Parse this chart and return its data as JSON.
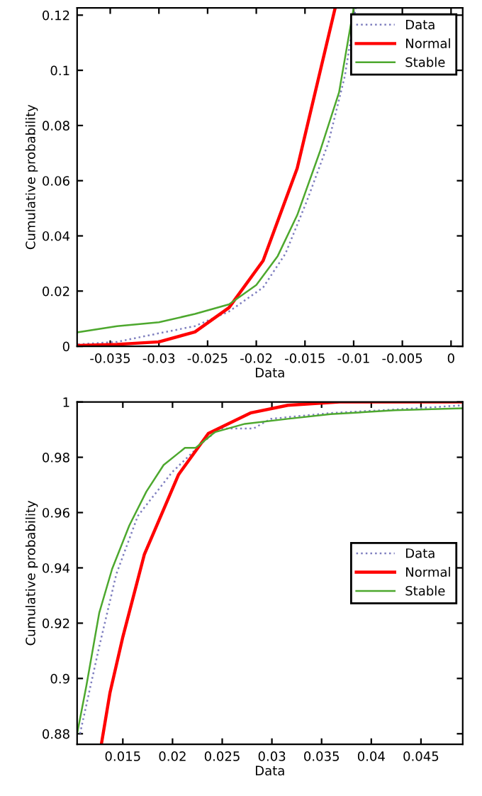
{
  "chart_data": [
    {
      "type": "line",
      "xlabel": "Data",
      "ylabel": "Cumulative probability",
      "xlim": [
        -0.0384,
        0.0012
      ],
      "ylim": [
        0,
        0.1226
      ],
      "xticks": [
        -0.035,
        -0.03,
        -0.025,
        -0.02,
        -0.015,
        -0.01,
        -0.005,
        0
      ],
      "yticks": [
        0,
        0.02,
        0.04,
        0.06,
        0.08,
        0.1,
        0.12
      ],
      "legend": "top right",
      "grid": false,
      "series": [
        {
          "name": "Data",
          "color": "#7f7fbf",
          "line_style": "dotted",
          "x": [
            -0.0383,
            -0.0343,
            -0.03,
            -0.0263,
            -0.0228,
            -0.0193,
            -0.017,
            -0.0148,
            -0.0126,
            -0.0109,
            -0.0098
          ],
          "values": [
            0.0007,
            0.0016,
            0.0047,
            0.0073,
            0.0126,
            0.0213,
            0.0336,
            0.0527,
            0.0737,
            0.098,
            0.1226
          ]
        },
        {
          "name": "Normal",
          "color": "#ff0000",
          "line_style": "solid",
          "x": [
            -0.0383,
            -0.0343,
            -0.03,
            -0.0263,
            -0.0228,
            -0.0193,
            -0.0158,
            -0.0119
          ],
          "values": [
            0.0003,
            0.0007,
            0.0016,
            0.0052,
            0.014,
            0.031,
            0.0645,
            0.1226
          ]
        },
        {
          "name": "Stable",
          "color": "#4da82e",
          "line_style": "solid",
          "x": [
            -0.0383,
            -0.0343,
            -0.03,
            -0.0263,
            -0.0228,
            -0.02,
            -0.0178,
            -0.0158,
            -0.0135,
            -0.0115,
            -0.01
          ],
          "values": [
            0.0051,
            0.0073,
            0.0087,
            0.0117,
            0.0152,
            0.0222,
            0.0327,
            0.0475,
            0.0702,
            0.092,
            0.1226
          ]
        }
      ]
    },
    {
      "type": "line",
      "xlabel": "Data",
      "ylabel": "Cumulative probability",
      "xlim": [
        0.0104,
        0.0492
      ],
      "ylim": [
        0.8762,
        1
      ],
      "xticks": [
        0.015,
        0.02,
        0.025,
        0.03,
        0.035,
        0.04,
        0.045
      ],
      "yticks": [
        0.88,
        0.9,
        0.92,
        0.94,
        0.96,
        0.98,
        1
      ],
      "legend": "right",
      "grid": false,
      "series": [
        {
          "name": "Data",
          "color": "#7f7fbf",
          "line_style": "dotted",
          "x": [
            0.01069,
            0.01263,
            0.01435,
            0.01651,
            0.01996,
            0.02297,
            0.0247,
            0.02815,
            0.02987,
            0.0359,
            0.04453,
            0.0492
          ],
          "values": [
            0.88,
            0.9116,
            0.9378,
            0.9588,
            0.9746,
            0.9851,
            0.9904,
            0.9904,
            0.9939,
            0.996,
            0.9977,
            0.9988
          ]
        },
        {
          "name": "Normal",
          "color": "#ff0000",
          "line_style": "solid",
          "x": [
            0.01284,
            0.01371,
            0.015,
            0.01716,
            0.0206,
            0.0236,
            0.0279,
            0.0316,
            0.0368,
            0.0492
          ],
          "values": [
            0.8762,
            0.8949,
            0.915,
            0.9448,
            0.9737,
            0.9886,
            0.9961,
            0.9988,
            1.0,
            1.0
          ]
        },
        {
          "name": "Stable",
          "color": "#4da82e",
          "line_style": "solid",
          "x": [
            0.0104,
            0.01134,
            0.01263,
            0.01392,
            0.01565,
            0.01737,
            0.0191,
            0.02125,
            0.02233,
            0.02427,
            0.02728,
            0.0316,
            0.0359,
            0.04237,
            0.0492
          ],
          "values": [
            0.88,
            0.8975,
            0.9238,
            0.9396,
            0.9553,
            0.9676,
            0.9772,
            0.9834,
            0.9834,
            0.9891,
            0.9921,
            0.9939,
            0.9956,
            0.997,
            0.9977
          ]
        }
      ]
    }
  ]
}
